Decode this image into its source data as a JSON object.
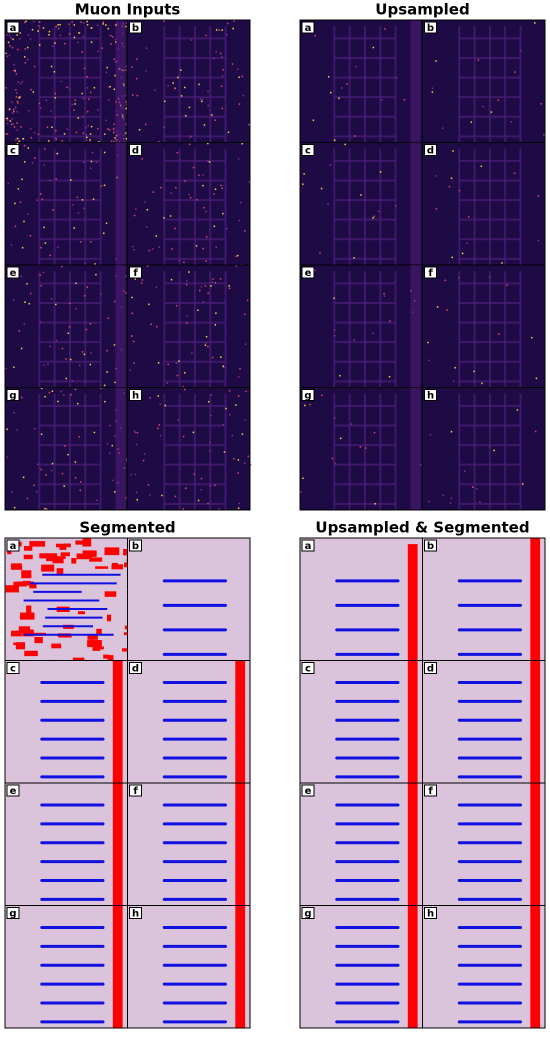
{
  "panels": [
    {
      "title": "Muon Inputs",
      "tiles": [
        "a",
        "b",
        "c",
        "d",
        "e",
        "f",
        "g",
        "h"
      ]
    },
    {
      "title": "Upsampled",
      "tiles": [
        "a",
        "b",
        "c",
        "d",
        "e",
        "f",
        "g",
        "h"
      ]
    },
    {
      "title": "Segmented",
      "tiles": [
        "a",
        "b",
        "c",
        "d",
        "e",
        "f",
        "g",
        "h"
      ]
    },
    {
      "title": "Upsampled & Segmented",
      "tiles": [
        "a",
        "b",
        "c",
        "d",
        "e",
        "f",
        "g",
        "h"
      ]
    }
  ]
}
